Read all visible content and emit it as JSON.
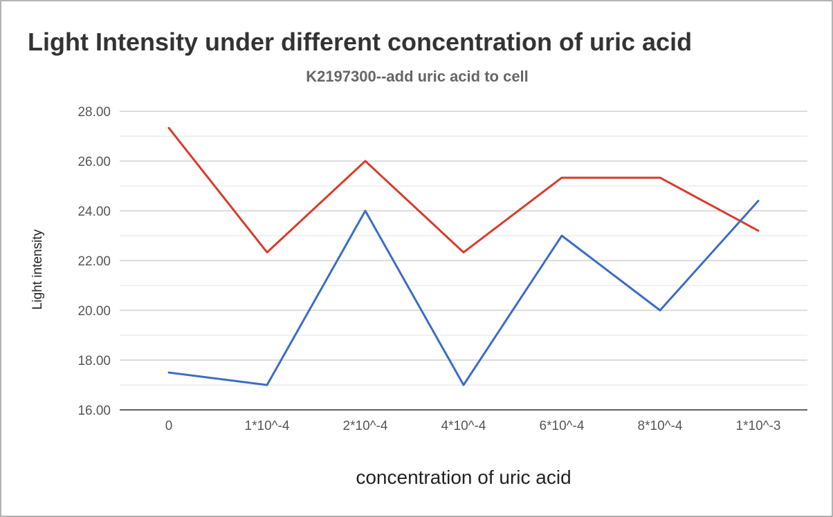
{
  "chart_data": {
    "type": "line",
    "title": "Light Intensity under different concentration of uric acid",
    "subtitle": "K2197300--add uric acid to cell",
    "xlabel": "concentration of uric acid",
    "ylabel": "Light intensity",
    "categories": [
      "0",
      "1*10^-4",
      "2*10^-4",
      "4*10^-4",
      "6*10^-4",
      "8*10^-4",
      "1*10^-3"
    ],
    "ylim": [
      16,
      28
    ],
    "yticks": [
      "16.00",
      "18.00",
      "20.00",
      "22.00",
      "24.00",
      "26.00",
      "28.00"
    ],
    "grid": true,
    "legend": "none",
    "series": [
      {
        "color": "#d93a2a",
        "values": [
          27.33,
          22.33,
          26.0,
          22.33,
          25.33,
          25.33,
          23.2
        ]
      },
      {
        "color": "#3b6cc6",
        "values": [
          17.5,
          17.0,
          24.0,
          17.0,
          23.0,
          20.0,
          24.4
        ]
      }
    ]
  }
}
